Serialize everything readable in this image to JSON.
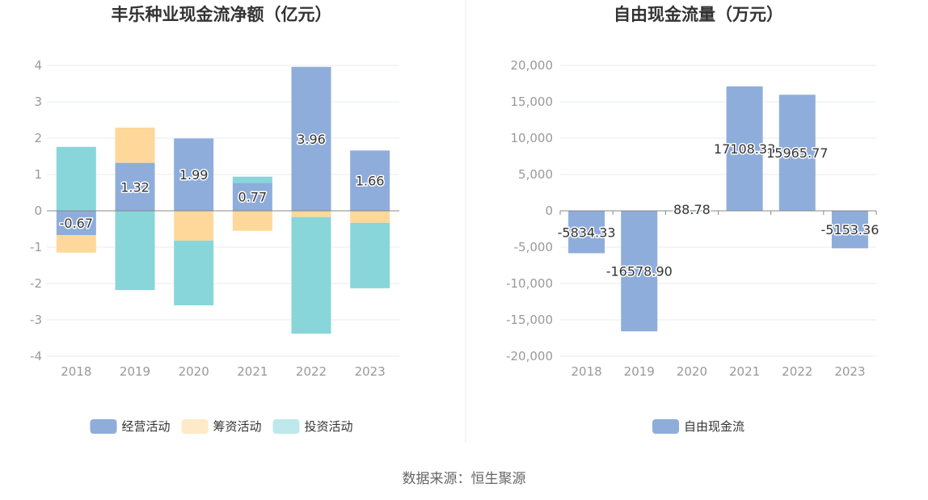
{
  "source_text": "数据来源：恒生聚源",
  "colors": {
    "operating": "#8eaddb",
    "financing": "#fed89a",
    "investing": "#88d6da",
    "free_cash_flow": "#8eaddb",
    "grid": "#e8ebf2",
    "axis": "#888888",
    "divider": "#eeeeee"
  },
  "chart_data": [
    {
      "type": "bar",
      "stacked": true,
      "title": "丰乐种业现金流净额（亿元）",
      "categories": [
        "2018",
        "2019",
        "2020",
        "2021",
        "2022",
        "2023"
      ],
      "ylim": [
        -4,
        4
      ],
      "yticks": [
        -4,
        -3,
        -2,
        -1,
        0,
        1,
        2,
        3,
        4
      ],
      "grid": true,
      "legend_position": "bottom",
      "series": [
        {
          "name": "经营活动",
          "color_key": "operating",
          "values": [
            -0.67,
            1.32,
            1.99,
            0.77,
            3.96,
            1.66
          ],
          "labels": [
            "-0.67",
            "1.32",
            "1.99",
            "0.77",
            "3.96",
            "1.66"
          ]
        },
        {
          "name": "筹资活动",
          "color_key": "financing",
          "values": [
            -0.48,
            0.97,
            -0.82,
            -0.55,
            -0.17,
            -0.33
          ]
        },
        {
          "name": "投资活动",
          "color_key": "investing",
          "values": [
            1.76,
            -2.18,
            -1.78,
            0.17,
            -3.21,
            -1.8
          ]
        }
      ]
    },
    {
      "type": "bar",
      "stacked": false,
      "title": "自由现金流量（万元）",
      "categories": [
        "2018",
        "2019",
        "2020",
        "2021",
        "2022",
        "2023"
      ],
      "ylim": [
        -20000,
        20000
      ],
      "yticks": [
        -20000,
        -15000,
        -10000,
        -5000,
        0,
        5000,
        10000,
        15000,
        20000
      ],
      "ytick_labels": [
        "-20,000",
        "-15,000",
        "-10,000",
        "-5,000",
        "0",
        "5,000",
        "10,000",
        "15,000",
        "20,000"
      ],
      "grid": true,
      "legend_position": "bottom",
      "series": [
        {
          "name": "自由现金流",
          "color_key": "free_cash_flow",
          "values": [
            -5834.33,
            -16578.9,
            88.78,
            17108.33,
            15965.77,
            -5153.36
          ],
          "labels": [
            "-5834.33",
            "-16578.90",
            "88.78",
            "17108.33",
            "15965.77",
            "-5153.36"
          ]
        }
      ]
    }
  ]
}
